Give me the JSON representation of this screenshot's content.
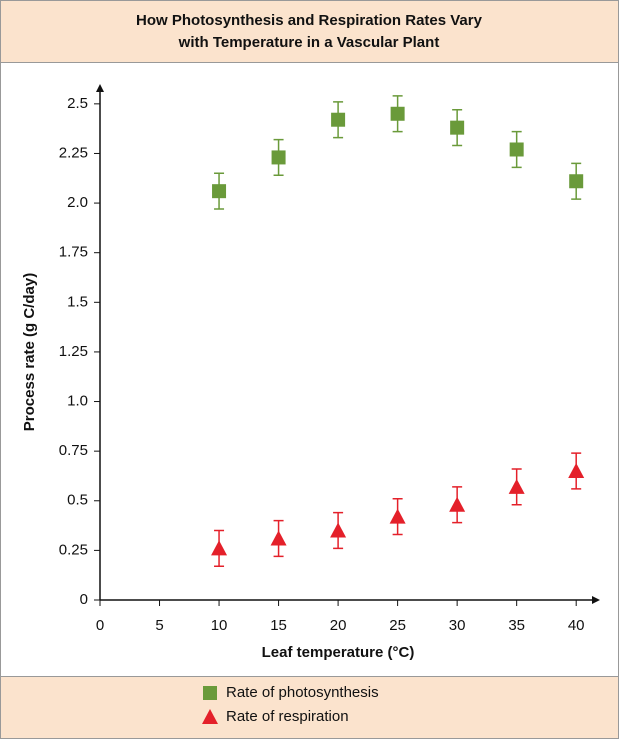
{
  "chart_data": {
    "type": "scatter",
    "title": [
      "How Photosynthesis and Respiration Rates Vary",
      "with Temperature in a Vascular Plant"
    ],
    "xlabel": "Leaf temperature (°C)",
    "ylabel": "Process rate (g C/day)",
    "xlim": [
      0,
      42
    ],
    "ylim": [
      0,
      2.6
    ],
    "xticks": [
      0,
      5,
      10,
      15,
      20,
      25,
      30,
      35,
      40
    ],
    "yticks": [
      0,
      0.25,
      0.5,
      0.75,
      {
        "value": 1,
        "label": "1.0"
      },
      1.25,
      1.5,
      1.75,
      {
        "value": 2,
        "label": "2.0"
      },
      2.25,
      2.5
    ],
    "series": [
      {
        "name": "Rate of photosynthesis",
        "color": "#6a9a3a",
        "marker": "square",
        "x": [
          10,
          15,
          20,
          25,
          30,
          35,
          40
        ],
        "values": [
          2.06,
          2.23,
          2.42,
          2.45,
          2.38,
          2.27,
          2.11
        ],
        "errors": [
          0.09,
          0.09,
          0.09,
          0.09,
          0.09,
          0.09,
          0.09
        ]
      },
      {
        "name": "Rate of respiration",
        "color": "#e4202a",
        "marker": "triangle",
        "x": [
          10,
          15,
          20,
          25,
          30,
          35,
          40
        ],
        "values": [
          0.26,
          0.31,
          0.35,
          0.42,
          0.48,
          0.57,
          0.65
        ],
        "errors": [
          0.09,
          0.09,
          0.09,
          0.09,
          0.09,
          0.09,
          0.09
        ]
      }
    ]
  }
}
